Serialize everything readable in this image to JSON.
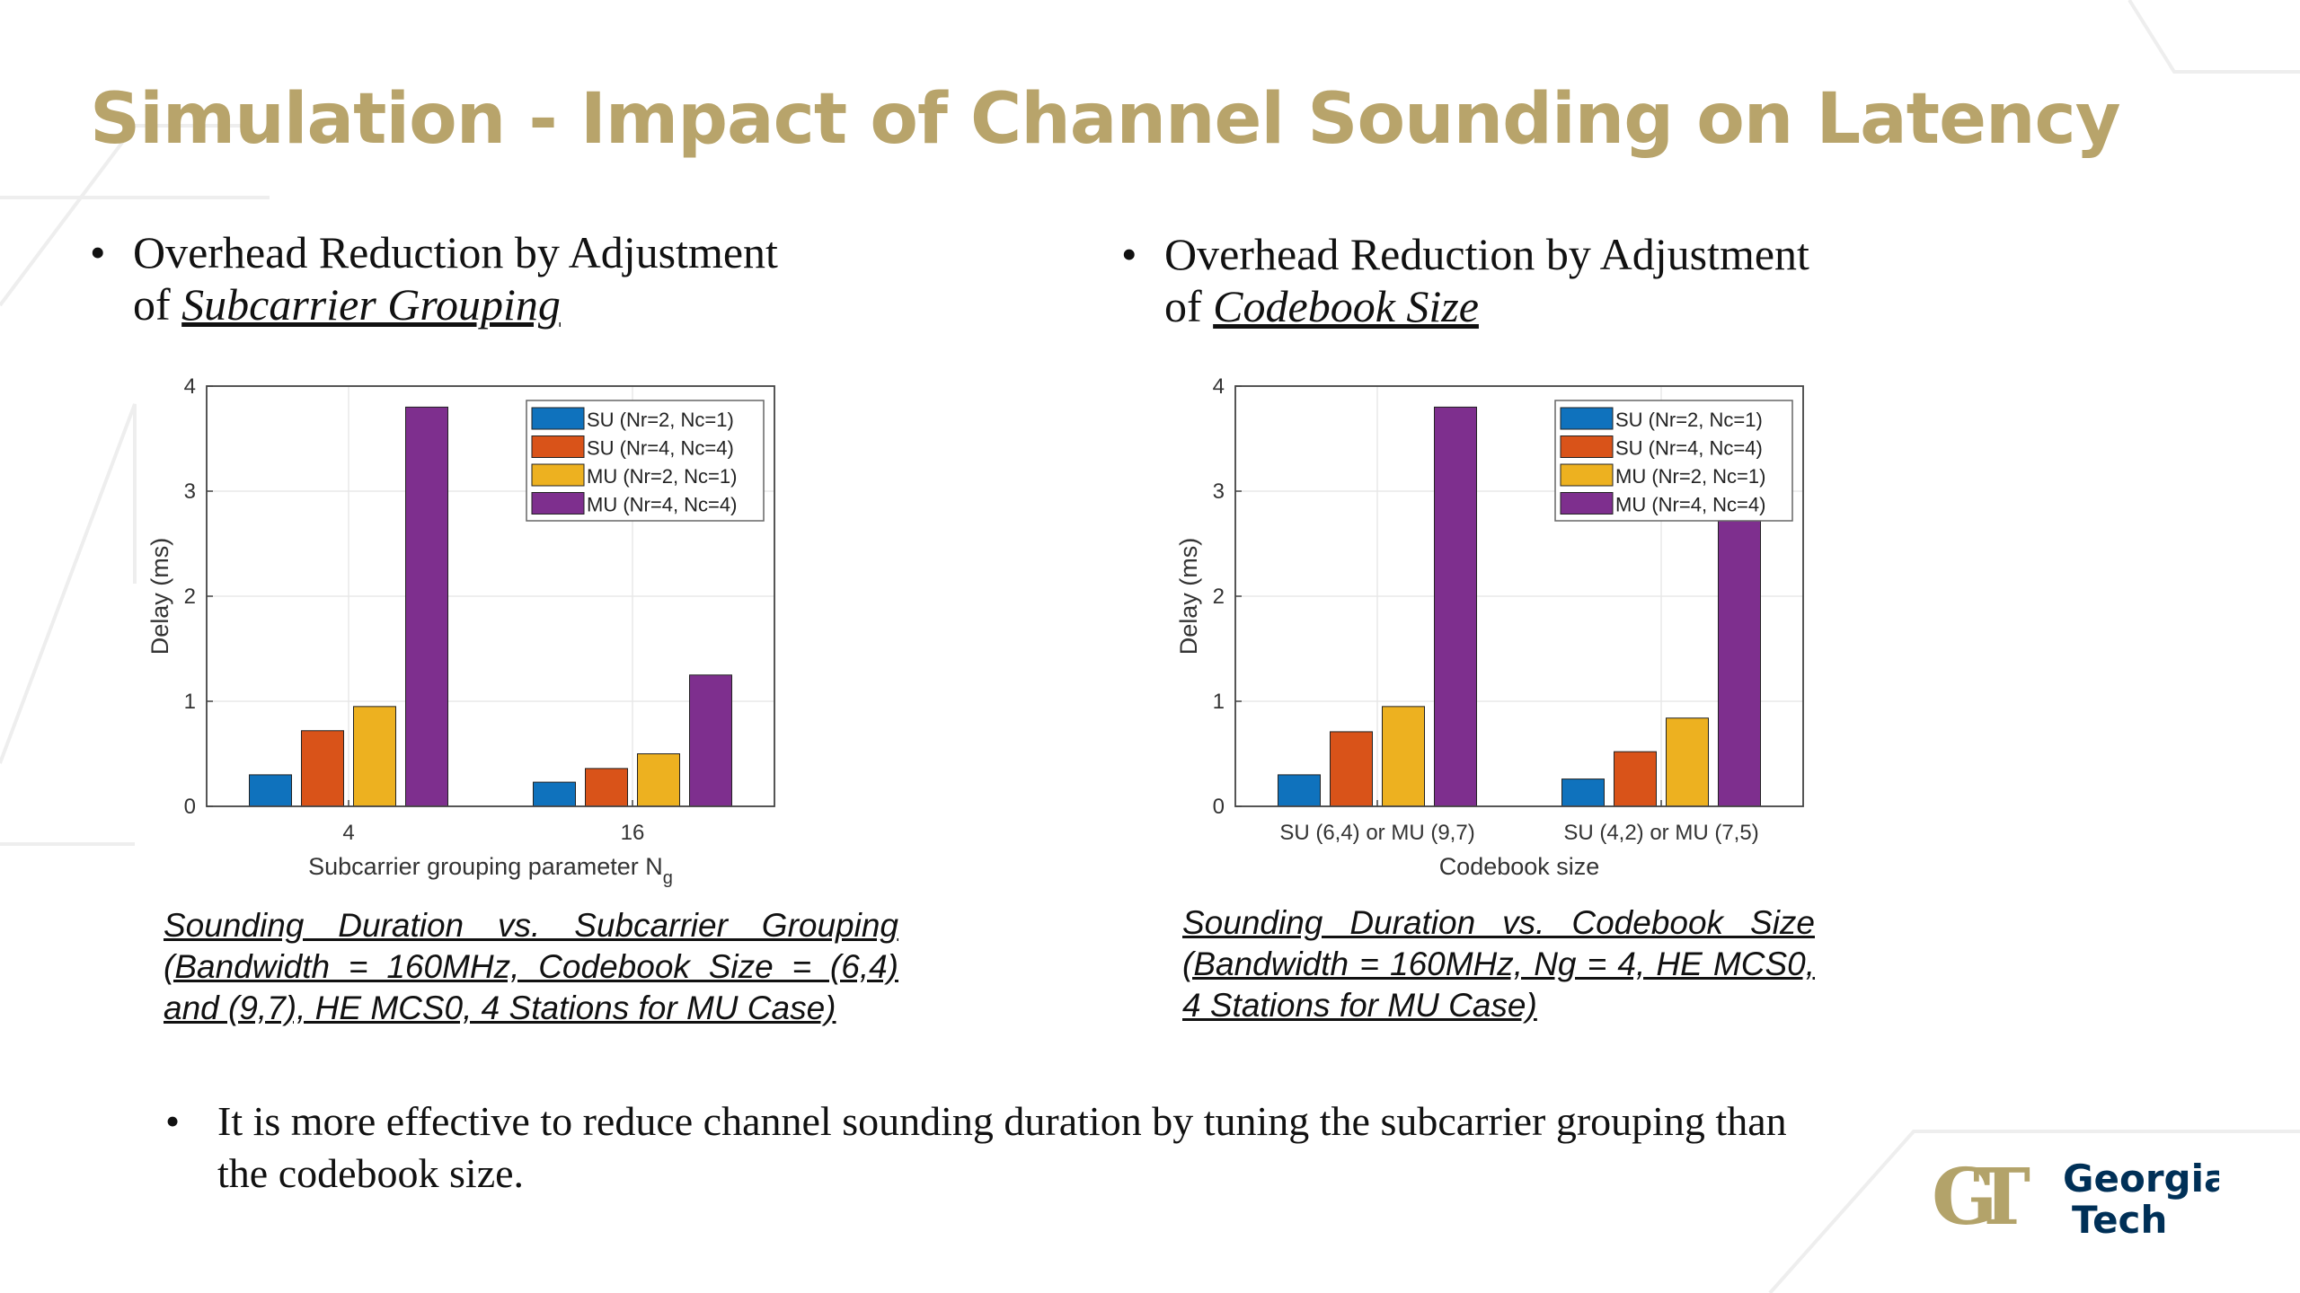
{
  "title": "Simulation - Impact of Channel Sounding on Latency",
  "colors": {
    "title": "#b8a46b",
    "series": [
      "#0f72bd",
      "#d95319",
      "#edb120",
      "#7e2f8e"
    ]
  },
  "left": {
    "bullet_line1": "Overhead Reduction by Adjustment",
    "bullet_prefix": "of ",
    "bullet_emph": "Subcarrier Grouping",
    "caption": "Sounding Duration vs. Subcarrier Grouping (Bandwidth = 160MHz, Codebook Size = (6,4) and (9,7), HE MCS0, 4 Stations for MU Case)"
  },
  "right": {
    "bullet_line1": "Overhead Reduction by Adjustment",
    "bullet_prefix": "of ",
    "bullet_emph": "Codebook Size",
    "caption": "Sounding Duration vs. Codebook Size (Bandwidth = 160MHz, Ng = 4, HE MCS0, 4 Stations for MU Case)"
  },
  "conclusion": "It is more effective to reduce channel sounding duration by tuning the subcarrier grouping than the codebook size.",
  "logo": {
    "line1": "Georgia",
    "line2": "Tech"
  },
  "chart_data": [
    {
      "type": "bar",
      "categories": [
        "4",
        "16"
      ],
      "xlabel": "Subcarrier grouping parameter N",
      "xlabel_sub": "g",
      "ylabel": "Delay (ms)",
      "ylim": [
        0,
        4
      ],
      "yticks": [
        "0",
        "1",
        "2",
        "3",
        "4"
      ],
      "legend_position": "top-right",
      "series": [
        {
          "name": "SU (Nr=2, Nc=1)",
          "values": [
            0.3,
            0.23
          ]
        },
        {
          "name": "SU (Nr=4, Nc=4)",
          "values": [
            0.72,
            0.36
          ]
        },
        {
          "name": "MU (Nr=2, Nc=1)",
          "values": [
            0.95,
            0.5
          ]
        },
        {
          "name": "MU (Nr=4, Nc=4)",
          "values": [
            3.8,
            1.25
          ]
        }
      ]
    },
    {
      "type": "bar",
      "categories": [
        "SU (6,4) or MU (9,7)",
        "SU (4,2) or MU (7,5)"
      ],
      "xlabel": "Codebook size",
      "ylabel": "Delay (ms)",
      "ylim": [
        0,
        4
      ],
      "yticks": [
        "0",
        "1",
        "2",
        "3",
        "4"
      ],
      "legend_position": "top-right",
      "series": [
        {
          "name": "SU (Nr=2, Nc=1)",
          "values": [
            0.3,
            0.26
          ]
        },
        {
          "name": "SU (Nr=4, Nc=4)",
          "values": [
            0.71,
            0.52
          ]
        },
        {
          "name": "MU (Nr=2, Nc=1)",
          "values": [
            0.95,
            0.84
          ]
        },
        {
          "name": "MU (Nr=4, Nc=4)",
          "values": [
            3.8,
            3.07
          ]
        }
      ]
    }
  ]
}
